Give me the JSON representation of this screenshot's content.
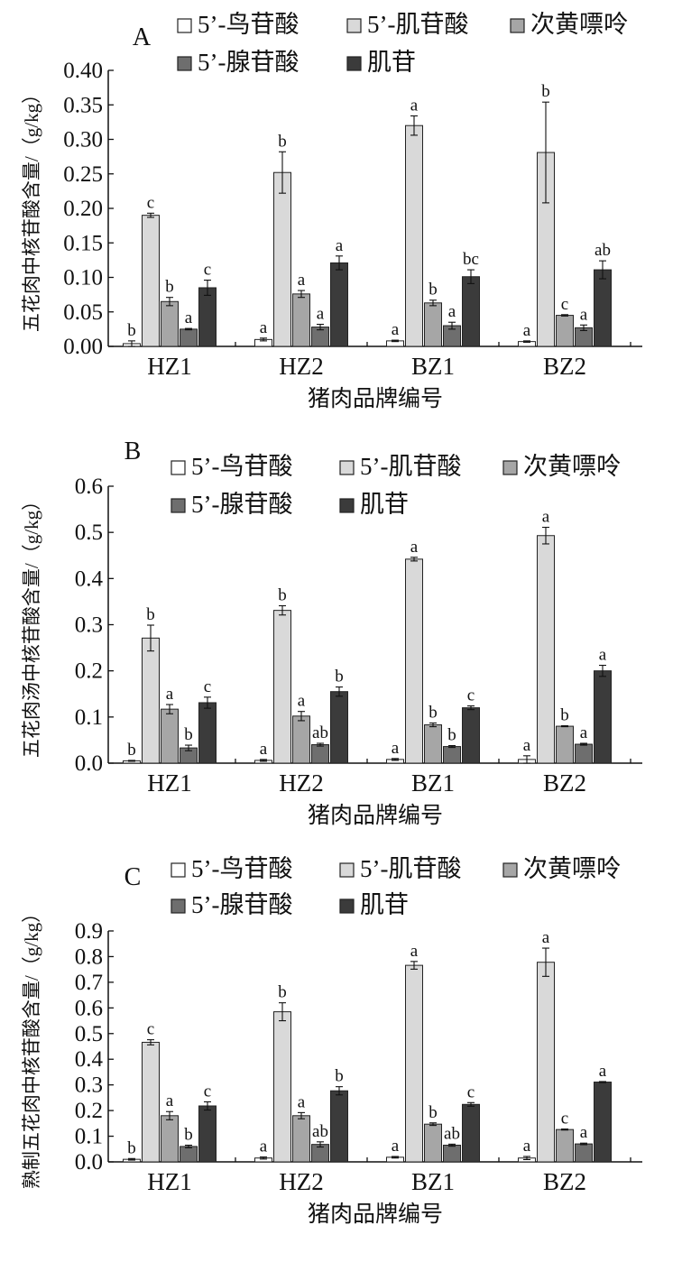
{
  "chart_data": [
    {
      "type": "bar",
      "panel": "A",
      "ylabel": "五花肉中核苷酸含量/（g/kg）",
      "xlabel": "猪肉品牌编号",
      "ylim": [
        0,
        0.4
      ],
      "yticks": [
        "0.00",
        "0.05",
        "0.10",
        "0.15",
        "0.20",
        "0.25",
        "0.30",
        "0.35",
        "0.40"
      ],
      "categories": [
        "HZ1",
        "HZ2",
        "BZ1",
        "BZ2"
      ],
      "series": [
        {
          "name": "5’-鸟苷酸",
          "color": "#ffffff",
          "values": [
            0.004,
            0.01,
            0.008,
            0.007
          ],
          "errors": [
            0.004,
            0.002,
            0.001,
            0.001
          ],
          "labels": [
            "b",
            "a",
            "a",
            "a"
          ]
        },
        {
          "name": "5’-肌苷酸",
          "color": "#d9d9d9",
          "values": [
            0.19,
            0.252,
            0.32,
            0.281
          ],
          "errors": [
            0.003,
            0.03,
            0.014,
            0.073
          ],
          "labels": [
            "c",
            "b",
            "a",
            "b"
          ]
        },
        {
          "name": "次黄嘌呤",
          "color": "#a6a6a6",
          "values": [
            0.065,
            0.076,
            0.063,
            0.045
          ],
          "errors": [
            0.006,
            0.005,
            0.004,
            0.001
          ],
          "labels": [
            "b",
            "a",
            "b",
            "c"
          ]
        },
        {
          "name": "5’-腺苷酸",
          "color": "#6e6e6e",
          "values": [
            0.025,
            0.028,
            0.03,
            0.027
          ],
          "errors": [
            0.001,
            0.004,
            0.005,
            0.004
          ],
          "labels": [
            "a",
            "a",
            "a",
            "a"
          ]
        },
        {
          "name": "肌苷",
          "color": "#3b3b3b",
          "values": [
            0.085,
            0.121,
            0.101,
            0.111
          ],
          "errors": [
            0.011,
            0.01,
            0.01,
            0.013
          ],
          "labels": [
            "c",
            "a",
            "bc",
            "ab"
          ]
        }
      ]
    },
    {
      "type": "bar",
      "panel": "B",
      "ylabel": "五花肉汤中核苷酸含量/（g/kg）",
      "xlabel": "猪肉品牌编号",
      "ylim": [
        0,
        0.6
      ],
      "yticks": [
        "0.0",
        "0.1",
        "0.2",
        "0.3",
        "0.4",
        "0.5",
        "0.6"
      ],
      "categories": [
        "HZ1",
        "HZ2",
        "BZ1",
        "BZ2"
      ],
      "series": [
        {
          "name": "5’-鸟苷酸",
          "color": "#ffffff",
          "values": [
            0.005,
            0.006,
            0.008,
            0.008
          ],
          "errors": [
            0.001,
            0.002,
            0.002,
            0.008
          ],
          "labels": [
            "b",
            "a",
            "a",
            "a"
          ]
        },
        {
          "name": "5’-肌苷酸",
          "color": "#d9d9d9",
          "values": [
            0.271,
            0.331,
            0.442,
            0.493
          ],
          "errors": [
            0.028,
            0.01,
            0.004,
            0.018
          ],
          "labels": [
            "b",
            "b",
            "a",
            "a"
          ]
        },
        {
          "name": "次黄嘌呤",
          "color": "#a6a6a6",
          "values": [
            0.117,
            0.102,
            0.083,
            0.08
          ],
          "errors": [
            0.01,
            0.01,
            0.004,
            0.001
          ],
          "labels": [
            "a",
            "a",
            "b",
            "b"
          ]
        },
        {
          "name": "5’-腺苷酸",
          "color": "#6e6e6e",
          "values": [
            0.033,
            0.04,
            0.036,
            0.041
          ],
          "errors": [
            0.006,
            0.003,
            0.002,
            0.002
          ],
          "labels": [
            "b",
            "ab",
            "b",
            "a"
          ]
        },
        {
          "name": "肌苷",
          "color": "#3b3b3b",
          "values": [
            0.131,
            0.155,
            0.12,
            0.2
          ],
          "errors": [
            0.012,
            0.01,
            0.004,
            0.012
          ],
          "labels": [
            "c",
            "b",
            "c",
            "a"
          ]
        }
      ]
    },
    {
      "type": "bar",
      "panel": "C",
      "ylabel": "熟制五花肉中核苷酸含量/（g/kg）",
      "xlabel": "猪肉品牌编号",
      "ylim": [
        0,
        0.9
      ],
      "yticks": [
        "0.0",
        "0.1",
        "0.2",
        "0.3",
        "0.4",
        "0.5",
        "0.6",
        "0.7",
        "0.8",
        "0.9"
      ],
      "categories": [
        "HZ1",
        "HZ2",
        "BZ1",
        "BZ2"
      ],
      "series": [
        {
          "name": "5’-鸟苷酸",
          "color": "#ffffff",
          "values": [
            0.01,
            0.015,
            0.018,
            0.015
          ],
          "errors": [
            0.003,
            0.004,
            0.003,
            0.006
          ],
          "labels": [
            "b",
            "a",
            "a",
            "a"
          ]
        },
        {
          "name": "5’-肌苷酸",
          "color": "#d9d9d9",
          "values": [
            0.466,
            0.585,
            0.766,
            0.778
          ],
          "errors": [
            0.01,
            0.035,
            0.015,
            0.055
          ],
          "labels": [
            "c",
            "b",
            "a",
            "a"
          ]
        },
        {
          "name": "次黄嘌呤",
          "color": "#a6a6a6",
          "values": [
            0.18,
            0.18,
            0.147,
            0.126
          ],
          "errors": [
            0.016,
            0.012,
            0.005,
            0.002
          ],
          "labels": [
            "a",
            "a",
            "b",
            "c"
          ]
        },
        {
          "name": "5’-腺苷酸",
          "color": "#6e6e6e",
          "values": [
            0.06,
            0.068,
            0.065,
            0.07
          ],
          "errors": [
            0.005,
            0.01,
            0.004,
            0.003
          ],
          "labels": [
            "b",
            "ab",
            "ab",
            "a"
          ]
        },
        {
          "name": "肌苷",
          "color": "#3b3b3b",
          "values": [
            0.218,
            0.277,
            0.224,
            0.311
          ],
          "errors": [
            0.016,
            0.016,
            0.007,
            0.002
          ],
          "labels": [
            "c",
            "b",
            "c",
            "a"
          ]
        }
      ]
    }
  ]
}
